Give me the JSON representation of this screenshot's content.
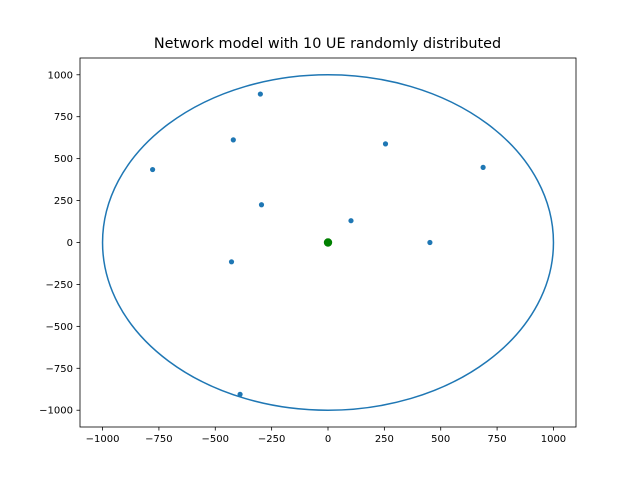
{
  "chart_data": {
    "type": "scatter",
    "title": "Network model with 10 UE randomly distributed",
    "xlabel": "",
    "ylabel": "",
    "xlim": [
      -1100,
      1100
    ],
    "ylim": [
      -1100,
      1100
    ],
    "xticks": [
      -1000,
      -750,
      -500,
      -250,
      0,
      250,
      500,
      750,
      1000
    ],
    "yticks": [
      -1000,
      -750,
      -500,
      -250,
      0,
      250,
      500,
      750,
      1000
    ],
    "xtick_labels": [
      "−1000",
      "−750",
      "−500",
      "−250",
      "0",
      "250",
      "500",
      "750",
      "1000"
    ],
    "ytick_labels": [
      "−1000",
      "−750",
      "−500",
      "−250",
      "0",
      "250",
      "500",
      "750",
      "1000"
    ],
    "grid": false,
    "colors": {
      "ue": "#1f77b4",
      "circle": "#1f77b4",
      "base_station": "#008000"
    },
    "cell_circle": {
      "center": [
        0,
        0
      ],
      "radius": 1000
    },
    "base_station": {
      "x": 0,
      "y": 0
    },
    "ue_points": [
      {
        "x": -300,
        "y": 885
      },
      {
        "x": -420,
        "y": 612
      },
      {
        "x": 255,
        "y": 588
      },
      {
        "x": 688,
        "y": 448
      },
      {
        "x": -778,
        "y": 435
      },
      {
        "x": -295,
        "y": 225
      },
      {
        "x": 102,
        "y": 130
      },
      {
        "x": 452,
        "y": 0
      },
      {
        "x": -428,
        "y": -115
      },
      {
        "x": -390,
        "y": -905
      }
    ]
  }
}
